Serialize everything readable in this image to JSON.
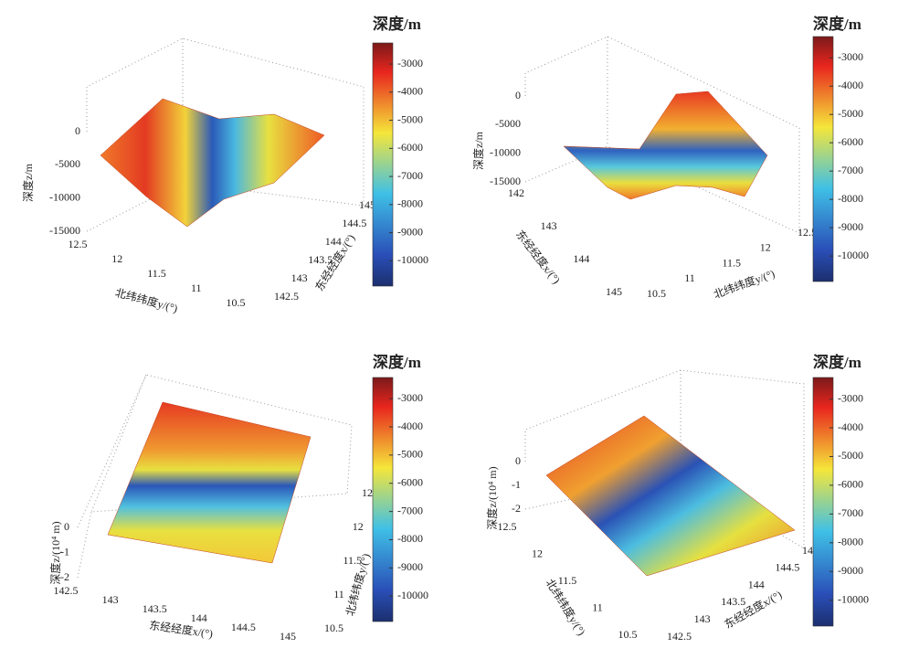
{
  "chart_data": [
    {
      "type": "surface3d",
      "colorbar_title": "深度/m",
      "clim": [
        -10900,
        -2250
      ],
      "cticks": [
        -3000,
        -4000,
        -5000,
        -6000,
        -7000,
        -8000,
        -9000,
        -10000
      ],
      "zlabel": "深度z/m",
      "zlim": [
        -15000,
        0
      ],
      "zticks": [
        0,
        -5000,
        -10000,
        -15000
      ],
      "xlabel": "东经经度x/(°)",
      "xlim": [
        142.5,
        145
      ],
      "xticks": [
        142.5,
        143,
        143.5,
        144,
        144.5,
        145
      ],
      "ylabel": "北纬纬度y/(°)",
      "ylim": [
        10.5,
        12.5
      ],
      "yticks": [
        12.5,
        12,
        11.5,
        11,
        10.5
      ]
    },
    {
      "type": "surface3d",
      "colorbar_title": "深度/m",
      "clim": [
        -10900,
        -2250
      ],
      "cticks": [
        -3000,
        -4000,
        -5000,
        -6000,
        -7000,
        -8000,
        -9000,
        -10000
      ],
      "zlabel": "深度z/m",
      "zlim": [
        -15000,
        0
      ],
      "zticks": [
        0,
        -5000,
        -10000,
        -15000
      ],
      "xlabel": "东经经度x/(°)",
      "xlim": [
        142,
        145
      ],
      "xticks": [
        142,
        143,
        144,
        145
      ],
      "ylabel": "北纬纬度y/(°)",
      "ylim": [
        10.5,
        12.5
      ],
      "yticks": [
        10.5,
        11,
        11.5,
        12,
        12.5
      ]
    },
    {
      "type": "surface3d",
      "colorbar_title": "深度/m",
      "clim": [
        -10900,
        -2250
      ],
      "cticks": [
        -3000,
        -4000,
        -5000,
        -6000,
        -7000,
        -8000,
        -9000,
        -10000
      ],
      "zlabel": "深度z/(10⁴ m)",
      "zlim": [
        -2,
        0
      ],
      "zticks": [
        0,
        -1,
        -2
      ],
      "xlabel": "东经经度x/(°)",
      "xlim": [
        142.5,
        145
      ],
      "xticks": [
        142.5,
        143,
        143.5,
        144,
        144.5,
        145
      ],
      "ylabel": "北纬纬度y/(°)",
      "ylim": [
        10.5,
        12.5
      ],
      "yticks": [
        12.5,
        12,
        11.5,
        11,
        10.5
      ]
    },
    {
      "type": "surface3d",
      "colorbar_title": "深度/m",
      "clim": [
        -10900,
        -2250
      ],
      "cticks": [
        -3000,
        -4000,
        -5000,
        -6000,
        -7000,
        -8000,
        -9000,
        -10000
      ],
      "zlabel": "深度z/(10⁴ m)",
      "zlim": [
        -2,
        0
      ],
      "zticks": [
        0,
        -1,
        -2
      ],
      "xlabel": "东经经度x/(°)",
      "xlim": [
        142.5,
        145
      ],
      "xticks": [
        142.5,
        143,
        143.5,
        144,
        144.5,
        145
      ],
      "ylabel": "北纬纬度y/(°)",
      "ylim": [
        10.5,
        12.5
      ],
      "yticks": [
        12.5,
        12,
        11.5,
        11,
        10.5
      ]
    }
  ]
}
